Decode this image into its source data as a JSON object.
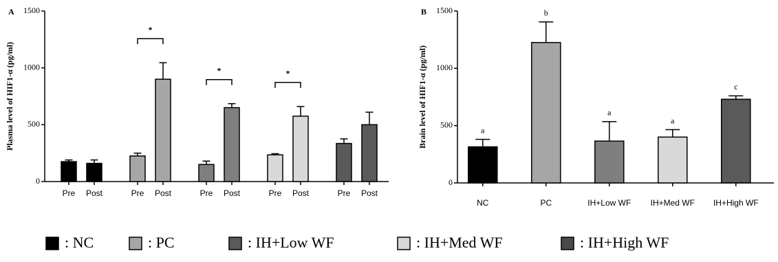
{
  "chart_data": [
    {
      "type": "bar",
      "title": "A",
      "y_label": "Plasma level of HIF1-α (pg/ml)",
      "ylim": [
        0,
        1500
      ],
      "yticks": [
        0,
        500,
        1000,
        1500
      ],
      "groups": [
        {
          "color": "#000000",
          "categories": [
            "Pre",
            "Post"
          ],
          "values": [
            175,
            160
          ],
          "errors": [
            15,
            30
          ]
        },
        {
          "color": "#a6a6a6",
          "categories": [
            "Pre",
            "Post"
          ],
          "values": [
            225,
            900
          ],
          "errors": [
            25,
            145
          ]
        },
        {
          "color": "#7f7f7f",
          "categories": [
            "Pre",
            "Post"
          ],
          "values": [
            150,
            650
          ],
          "errors": [
            30,
            35
          ]
        },
        {
          "color": "#d9d9d9",
          "categories": [
            "Pre",
            "Post"
          ],
          "values": [
            235,
            575
          ],
          "errors": [
            10,
            85
          ]
        },
        {
          "color": "#5a5a5a",
          "categories": [
            "Pre",
            "Post"
          ],
          "values": [
            335,
            500
          ],
          "errors": [
            40,
            110
          ]
        }
      ],
      "significance": [
        {
          "group": 1,
          "label": "*"
        },
        {
          "group": 2,
          "label": "*"
        },
        {
          "group": 3,
          "label": "*"
        }
      ]
    },
    {
      "type": "bar",
      "title": "B",
      "y_label": "Brain level of HIF1-α (pg/ml)",
      "ylim": [
        0,
        1500
      ],
      "yticks": [
        0,
        500,
        1000,
        1500
      ],
      "categories": [
        "NC",
        "PC",
        "IH+Low WF",
        "IH+Med WF",
        "IH+High WF"
      ],
      "values": [
        315,
        1225,
        365,
        400,
        730
      ],
      "errors": [
        65,
        180,
        170,
        65,
        30
      ],
      "colors": [
        "#000000",
        "#a6a6a6",
        "#7f7f7f",
        "#d9d9d9",
        "#5a5a5a"
      ],
      "annotations": [
        "a",
        "b",
        "a",
        "a",
        "c"
      ]
    }
  ],
  "legend": [
    {
      "label": ": NC",
      "color": "#000000"
    },
    {
      "label": ": PC",
      "color": "#a6a6a6"
    },
    {
      "label": ": IH+Low WF",
      "color": "#5a5a5a"
    },
    {
      "label": ": IH+Med WF",
      "color": "#d9d9d9"
    },
    {
      "label": ": IH+High WF",
      "color": "#4a4a4a"
    }
  ]
}
